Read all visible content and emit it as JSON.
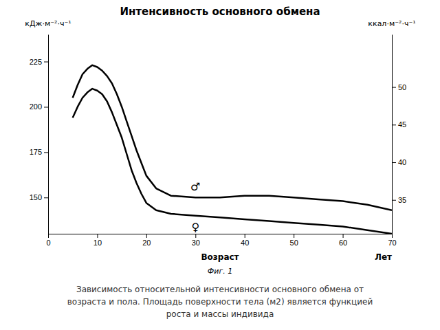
{
  "chart_data": {
    "type": "line",
    "title": "Интенсивность основного обмена",
    "xlabel": "Возраст",
    "ylabel": "кДж·м⁻²·ч⁻¹",
    "y2label": "ккал·м⁻²·ч⁻¹",
    "annotations": [
      "Лет",
      "Фиг. 1"
    ],
    "caption": [
      "Зависимость относительной интенсивности основного обмена от",
      "возраста и пола. Площадь поверхности тела (м2) является функцией",
      "роста и массы индивида"
    ],
    "x": [
      5,
      6,
      7,
      8,
      9,
      10,
      11,
      12,
      13,
      14,
      15,
      16,
      17,
      18,
      19,
      20,
      22,
      25,
      30,
      35,
      40,
      45,
      50,
      55,
      60,
      65,
      70
    ],
    "series": [
      {
        "name": "♂",
        "color": "#000000",
        "values": [
          205,
          212,
          218,
          221,
          223,
          222,
          220,
          217,
          213,
          207,
          200,
          192,
          184,
          176,
          169,
          162,
          155,
          151,
          150,
          150,
          151,
          151,
          150,
          149,
          148,
          146,
          143
        ]
      },
      {
        "name": "♀",
        "color": "#000000",
        "values": [
          194,
          200,
          205,
          208,
          210,
          209,
          207,
          203,
          197,
          190,
          183,
          174,
          165,
          158,
          152,
          147,
          143,
          141,
          140,
          139,
          138,
          137,
          136,
          135,
          134,
          132,
          130
        ]
      }
    ],
    "xlim": [
      0,
      70
    ],
    "xticks": [
      0,
      10,
      20,
      30,
      40,
      50,
      60,
      70
    ],
    "ylim": [
      130,
      240
    ],
    "yticks": [
      150,
      175,
      200,
      225
    ],
    "y2lim": [
      30.5,
      57.0
    ],
    "y2ticks": [
      35,
      40,
      45,
      50
    ]
  }
}
